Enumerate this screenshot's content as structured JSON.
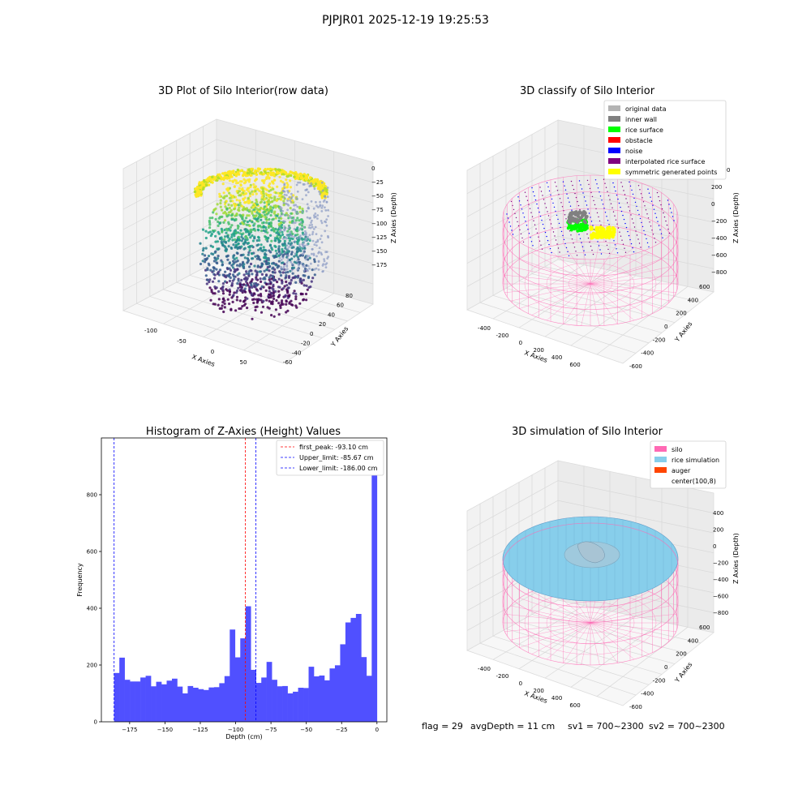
{
  "suptitle": "PJPJR01 2025-12-19 19:25:53",
  "colors": {
    "hist_bar": "#5050ff",
    "peak_line": "#ff0000",
    "limit_line": "#0000ff",
    "silo": "#ff69b4",
    "rice": "#87ceeb",
    "auger": "#ff4500",
    "original": "#b4b4b4",
    "inner_wall": "#808080",
    "rice_surface": "#00ff00",
    "obstacle": "#ff0000",
    "noise": "#0000ff",
    "interp": "#800080",
    "symmetric": "#ffff00"
  },
  "chart_data": [
    {
      "type": "scatter",
      "title": "3D Plot of Silo Interior(row data)",
      "xlabel": "X Axies",
      "ylabel": "Y Axies",
      "zlabel": "Z Axies (Depth)",
      "x_ticks": [
        "-100",
        "-50",
        "0",
        "50"
      ],
      "y_ticks": [
        "-60",
        "-40",
        "-20",
        "0",
        "20",
        "40",
        "60",
        "80"
      ],
      "z_ticks": [
        "0",
        "−25",
        "−50",
        "−75",
        "−100",
        "−125",
        "−150",
        "−175"
      ],
      "colormap": "viridis"
    },
    {
      "type": "scatter",
      "title": "3D classify of Silo Interior",
      "xlabel": "X Axies",
      "ylabel": "Y Axies",
      "zlabel": "Z Axies (Depth)",
      "x_ticks": [
        "-400",
        "-200",
        "0",
        "200",
        "400",
        "600"
      ],
      "y_ticks": [
        "-600",
        "-400",
        "-200",
        "0",
        "200",
        "400",
        "600"
      ],
      "z_ticks": [
        "200",
        "0",
        "−200",
        "−400",
        "−600",
        "−800"
      ],
      "z_ticks_partial": [
        "00"
      ],
      "legend": [
        {
          "label": "original data",
          "color": "#b4b4b4"
        },
        {
          "label": "inner wall",
          "color": "#808080"
        },
        {
          "label": "rice surface",
          "color": "#00ff00"
        },
        {
          "label": "obstacle",
          "color": "#ff0000"
        },
        {
          "label": "noise",
          "color": "#0000ff"
        },
        {
          "label": "interpolated rice surface",
          "color": "#800080"
        },
        {
          "label": "symmetric generated points",
          "color": "#ffff00"
        }
      ]
    },
    {
      "type": "bar",
      "title": "Histogram of Z-Axies (Height) Values",
      "xlabel": "Depth (cm)",
      "ylabel": "Frequency",
      "xlim": [
        -195,
        7
      ],
      "ylim": [
        0,
        1000
      ],
      "x_ticks": [
        -175,
        -150,
        -125,
        -100,
        -75,
        -50,
        -25,
        0
      ],
      "x_tick_labels": [
        "−175",
        "−150",
        "−125",
        "−100",
        "−75",
        "−50",
        "−25",
        "0"
      ],
      "y_ticks": [
        0,
        200,
        400,
        600,
        800
      ],
      "y_tick_labels": [
        "0",
        "200",
        "400",
        "600",
        "800"
      ],
      "bin_start": -186.0,
      "bin_width": 3.72,
      "values": [
        172,
        226,
        148,
        142,
        142,
        156,
        162,
        125,
        141,
        132,
        145,
        152,
        124,
        100,
        126,
        120,
        115,
        112,
        121,
        122,
        136,
        161,
        325,
        227,
        294,
        407,
        183,
        137,
        156,
        211,
        148,
        125,
        126,
        100,
        106,
        120,
        119,
        194,
        160,
        163,
        146,
        188,
        199,
        273,
        350,
        366,
        380,
        228,
        162,
        950
      ],
      "vlines": [
        {
          "name": "first_peak: -93.10 cm",
          "value": -93.1,
          "color": "#ff0000"
        },
        {
          "name": "Upper_limit: -85.67 cm",
          "value": -85.67,
          "color": "#0000ff"
        },
        {
          "name": "Lower_limit: -186.00 cm",
          "value": -186.0,
          "color": "#0000ff"
        }
      ]
    },
    {
      "type": "scatter",
      "title": "3D simulation of Silo Interior",
      "xlabel": "X Axies",
      "ylabel": "Y Axies",
      "zlabel": "Z Axies (Depth)",
      "x_ticks": [
        "-400",
        "-200",
        "0",
        "200",
        "400",
        "600"
      ],
      "y_ticks": [
        "-600",
        "-400",
        "-200",
        "0",
        "200",
        "400",
        "600"
      ],
      "z_ticks": [
        "400",
        "200",
        "0",
        "−200",
        "−400",
        "−600",
        "−800"
      ],
      "legend": [
        {
          "label": "silo",
          "color": "#ff69b4"
        },
        {
          "label": "rice simulation",
          "color": "#87ceeb"
        },
        {
          "label": "auger",
          "color": "#ff4500"
        },
        {
          "label": "center(100,8)",
          "color": ""
        }
      ]
    }
  ],
  "footer": {
    "flag": "flag = 29",
    "avg_depth": "avgDepth = 11 cm",
    "sv1": "sv1 = 700~2300",
    "sv2": "sv2 = 700~2300"
  }
}
